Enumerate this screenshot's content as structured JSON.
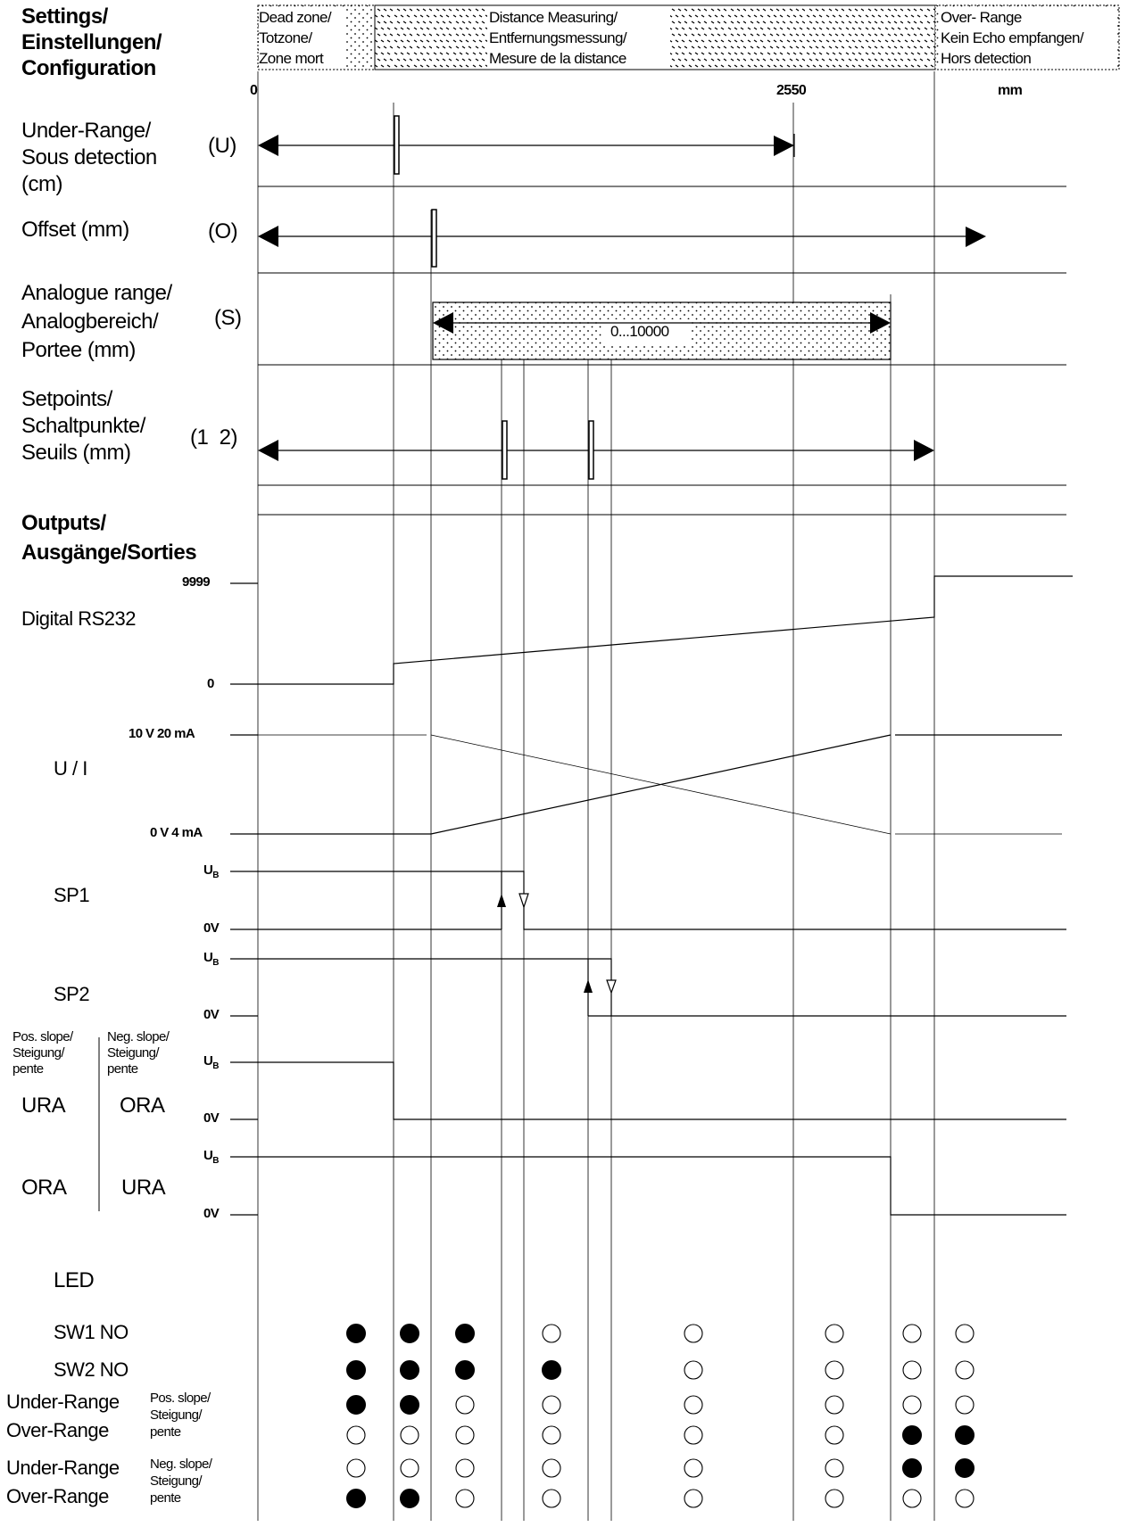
{
  "header": {
    "settings_lines": [
      "Settings/",
      "Einstellungen/",
      "Configuration"
    ],
    "dead_zone_lines": [
      "Dead zone/",
      "Totzone/",
      "Zone mort"
    ],
    "distance_lines": [
      "Distance Measuring/",
      "Entfernungsmessung/",
      "Mesure de la distance"
    ],
    "over_range_lines": [
      "Over- Range",
      "Kein Echo empfangen/",
      "Hors detection"
    ]
  },
  "axis": {
    "zero": "0",
    "mark": "2550",
    "unit": "mm"
  },
  "settings_rows": {
    "under_range": {
      "lines": [
        "Under-Range/",
        "Sous detection",
        "(cm)"
      ],
      "code": "(U)"
    },
    "offset": {
      "label": "Offset (mm)",
      "code": "(O)"
    },
    "analogue": {
      "lines": [
        "Analogue range/",
        "Analogbereich/",
        "Portee (mm)"
      ],
      "code": "(S)",
      "range_text": "0...10000"
    },
    "setpoints": {
      "lines": [
        "Setpoints/",
        "Schaltpunkte/",
        "Seuils (mm)"
      ],
      "code": "(1  2)"
    }
  },
  "outputs": {
    "title_lines": [
      "Outputs/",
      "Ausgänge/Sorties"
    ],
    "digital": {
      "label": "Digital RS232",
      "max": "9999",
      "min": "0"
    },
    "analog": {
      "label": "U / I",
      "high": "10 V 20 mA",
      "low": "0 V 4 mA"
    },
    "sp1": {
      "label": "SP1"
    },
    "sp2": {
      "label": "SP2"
    },
    "ub": "U",
    "ub_sub": "B",
    "zero_v": "0V",
    "slope_left": [
      "Pos. slope/",
      "Steigung/",
      "pente"
    ],
    "slope_right": [
      "Neg. slope/",
      "Steigung/",
      "pente"
    ],
    "ura": "URA",
    "ora": "ORA"
  },
  "led": {
    "title": "LED",
    "rows": [
      {
        "label": "SW1 NO",
        "states": [
          1,
          1,
          1,
          0,
          0,
          0,
          0,
          0
        ]
      },
      {
        "label": "SW2 NO",
        "states": [
          1,
          1,
          1,
          1,
          0,
          0,
          0,
          0
        ]
      },
      {
        "label": "Under-Range",
        "states": [
          1,
          1,
          0,
          0,
          0,
          0,
          0,
          0
        ]
      },
      {
        "label": "Over-Range",
        "states": [
          0,
          0,
          0,
          0,
          0,
          0,
          1,
          1
        ]
      },
      {
        "label": "Under-Range",
        "states": [
          0,
          0,
          0,
          0,
          0,
          0,
          1,
          1
        ]
      },
      {
        "label": "Over-Range",
        "states": [
          1,
          1,
          0,
          0,
          0,
          0,
          0,
          0
        ]
      }
    ],
    "pos_slope_lines": [
      "Pos. slope/",
      "Steigung/",
      "pente"
    ],
    "neg_slope_lines": [
      "Neg. slope/",
      "Steigung/",
      "pente"
    ]
  }
}
